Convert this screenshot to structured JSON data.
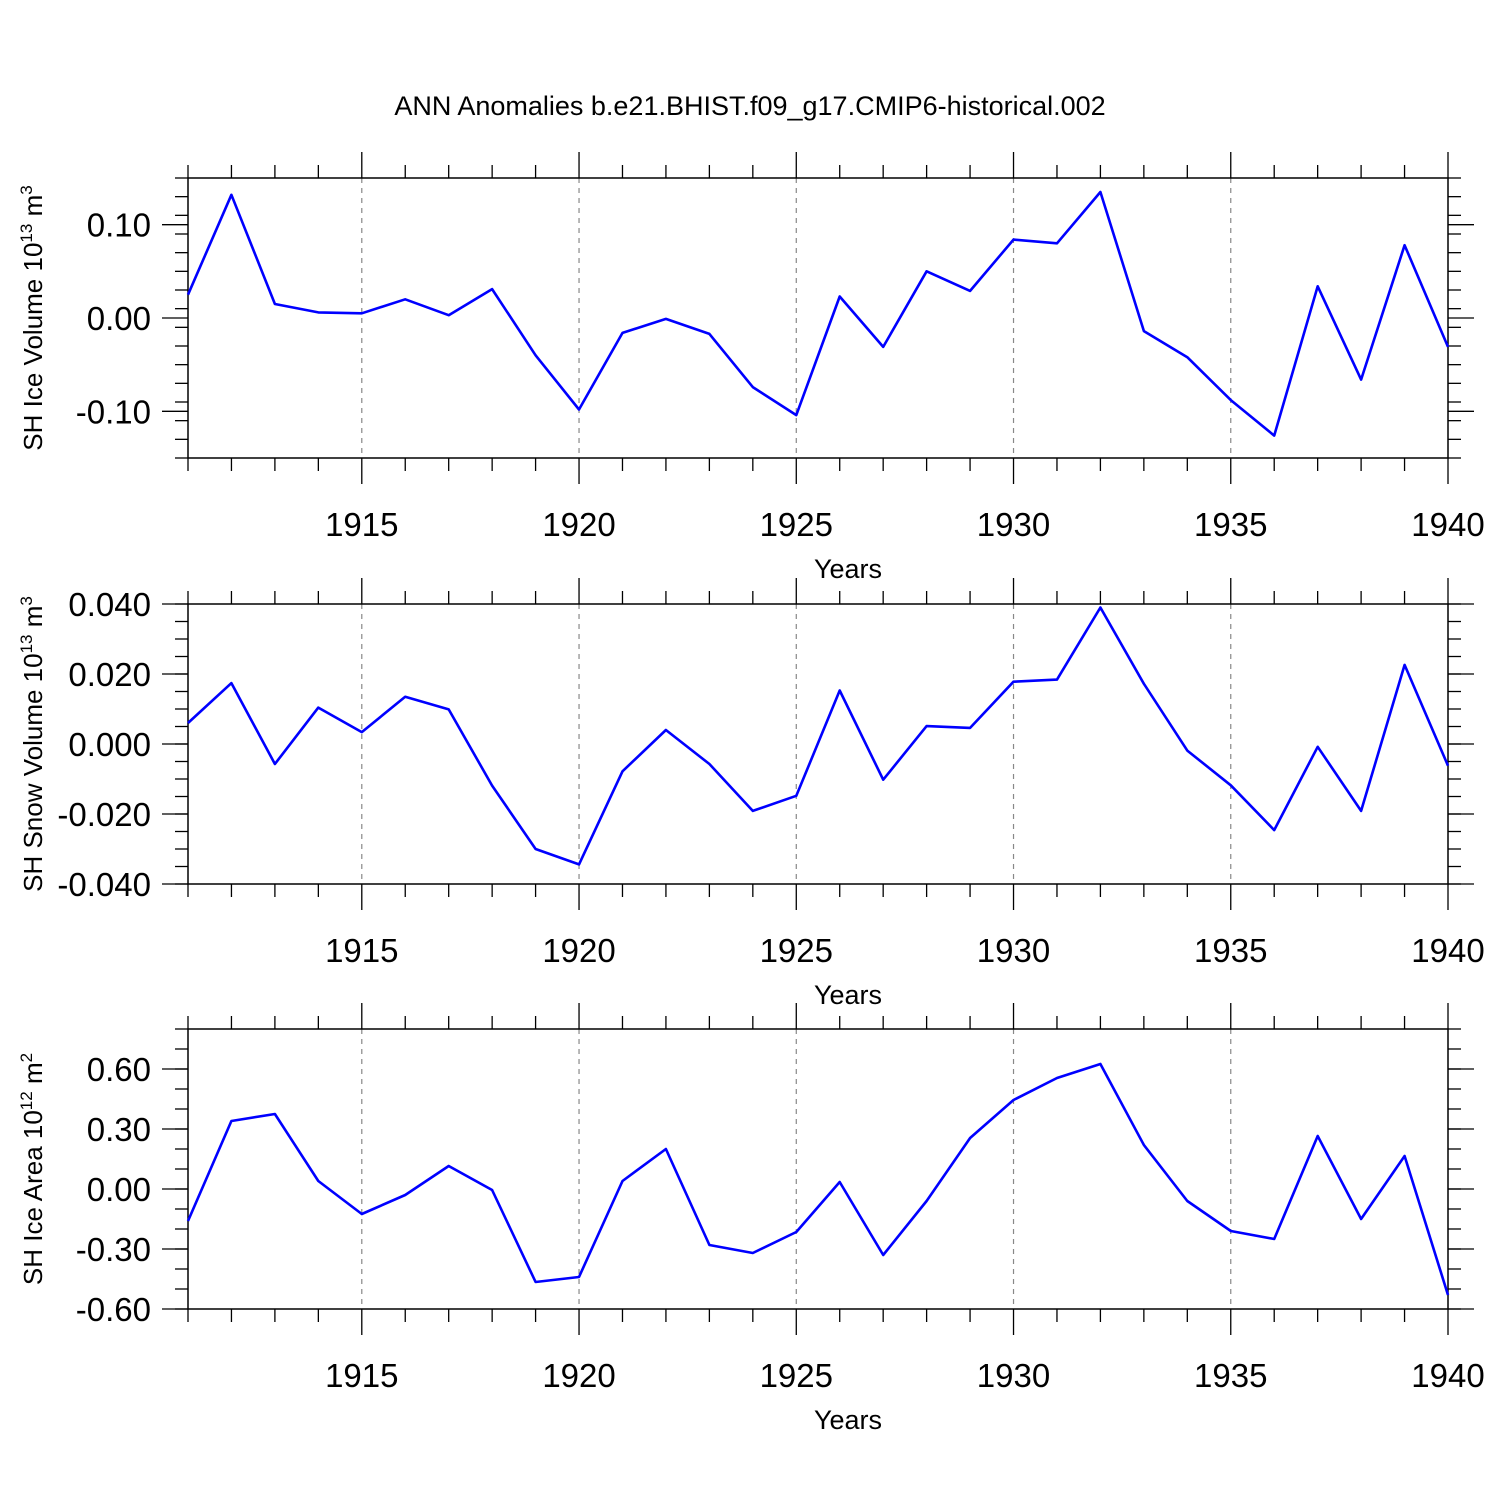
{
  "title": "ANN Anomalies b.e21.BHIST.f09_g17.CMIP6-historical.002",
  "line_color": "#0000ff",
  "grid_color": "#888888",
  "chart_data": [
    {
      "type": "line",
      "ylabel": "SH Ice Volume 10",
      "ylabel_exp": "13",
      "ylabel_unit": " m",
      "ylabel_unit_exp": "3",
      "xlabel": "Years",
      "xlim": [
        1911,
        1940
      ],
      "ylim": [
        -0.15,
        0.15
      ],
      "x_ticks": [
        1915,
        1920,
        1925,
        1930,
        1935,
        1940
      ],
      "x_tick_labels": [
        "1915",
        "1920",
        "1925",
        "1930",
        "1935",
        "1940"
      ],
      "y_ticks": [
        -0.1,
        0.0,
        0.1
      ],
      "y_tick_labels": [
        "-0.10",
        "0.00",
        "0.10"
      ],
      "y_minor_step": 0.02,
      "grid_x": [
        1915,
        1920,
        1925,
        1930,
        1935
      ],
      "x": [
        1911,
        1912,
        1913,
        1914,
        1915,
        1916,
        1917,
        1918,
        1919,
        1920,
        1921,
        1922,
        1923,
        1924,
        1925,
        1926,
        1927,
        1928,
        1929,
        1930,
        1931,
        1932,
        1933,
        1934,
        1935,
        1936,
        1937,
        1938,
        1939,
        1940
      ],
      "values": [
        0.025,
        0.132,
        0.015,
        0.006,
        0.005,
        0.02,
        0.003,
        0.031,
        -0.04,
        -0.098,
        -0.016,
        -0.001,
        -0.017,
        -0.074,
        -0.104,
        0.023,
        -0.031,
        0.05,
        0.029,
        0.084,
        0.08,
        0.135,
        -0.014,
        -0.042,
        -0.088,
        -0.126,
        0.034,
        -0.066,
        0.078,
        -0.031
      ]
    },
    {
      "type": "line",
      "ylabel": "SH Snow Volume 10",
      "ylabel_exp": "13",
      "ylabel_unit": " m",
      "ylabel_unit_exp": "3",
      "xlabel": "Years",
      "xlim": [
        1911,
        1940
      ],
      "ylim": [
        -0.04,
        0.04
      ],
      "x_ticks": [
        1915,
        1920,
        1925,
        1930,
        1935,
        1940
      ],
      "x_tick_labels": [
        "1915",
        "1920",
        "1925",
        "1930",
        "1935",
        "1940"
      ],
      "y_ticks": [
        -0.04,
        -0.02,
        0.0,
        0.02,
        0.04
      ],
      "y_tick_labels": [
        "-0.040",
        "-0.020",
        "0.000",
        "0.020",
        "0.040"
      ],
      "y_minor_step": 0.005,
      "grid_x": [
        1915,
        1920,
        1925,
        1930,
        1935
      ],
      "x": [
        1911,
        1912,
        1913,
        1914,
        1915,
        1916,
        1917,
        1918,
        1919,
        1920,
        1921,
        1922,
        1923,
        1924,
        1925,
        1926,
        1927,
        1928,
        1929,
        1930,
        1931,
        1932,
        1933,
        1934,
        1935,
        1936,
        1937,
        1938,
        1939,
        1940
      ],
      "values": [
        0.006,
        0.0174,
        -0.0057,
        0.0104,
        0.0034,
        0.0135,
        0.0099,
        -0.0119,
        -0.03,
        -0.0344,
        -0.0078,
        0.004,
        -0.0057,
        -0.0191,
        -0.0148,
        0.0153,
        -0.0102,
        0.0051,
        0.0046,
        0.0178,
        0.0184,
        0.039,
        0.0172,
        -0.0019,
        -0.0118,
        -0.0246,
        -0.0008,
        -0.0191,
        0.0226,
        -0.0062
      ]
    },
    {
      "type": "line",
      "ylabel": "SH Ice Area 10",
      "ylabel_exp": "12",
      "ylabel_unit": " m",
      "ylabel_unit_exp": "2",
      "xlabel": "Years",
      "xlim": [
        1911,
        1940
      ],
      "ylim": [
        -0.6,
        0.8
      ],
      "x_ticks": [
        1915,
        1920,
        1925,
        1930,
        1935,
        1940
      ],
      "x_tick_labels": [
        "1915",
        "1920",
        "1925",
        "1930",
        "1935",
        "1940"
      ],
      "y_ticks": [
        -0.6,
        -0.3,
        0.0,
        0.3,
        0.6
      ],
      "y_tick_labels": [
        "-0.60",
        "-0.30",
        "0.00",
        "0.30",
        "0.60"
      ],
      "y_minor_step": 0.1,
      "grid_x": [
        1915,
        1920,
        1925,
        1930,
        1935
      ],
      "x": [
        1911,
        1912,
        1913,
        1914,
        1915,
        1916,
        1917,
        1918,
        1919,
        1920,
        1921,
        1922,
        1923,
        1924,
        1925,
        1926,
        1927,
        1928,
        1929,
        1930,
        1931,
        1932,
        1933,
        1934,
        1935,
        1936,
        1937,
        1938,
        1939,
        1940
      ],
      "values": [
        -0.16,
        0.34,
        0.375,
        0.04,
        -0.125,
        -0.03,
        0.115,
        -0.005,
        -0.465,
        -0.44,
        0.04,
        0.2,
        -0.28,
        -0.32,
        -0.215,
        0.035,
        -0.33,
        -0.06,
        0.255,
        0.445,
        0.555,
        0.625,
        0.22,
        -0.06,
        -0.21,
        -0.25,
        0.265,
        -0.15,
        0.165,
        -0.53
      ]
    }
  ]
}
